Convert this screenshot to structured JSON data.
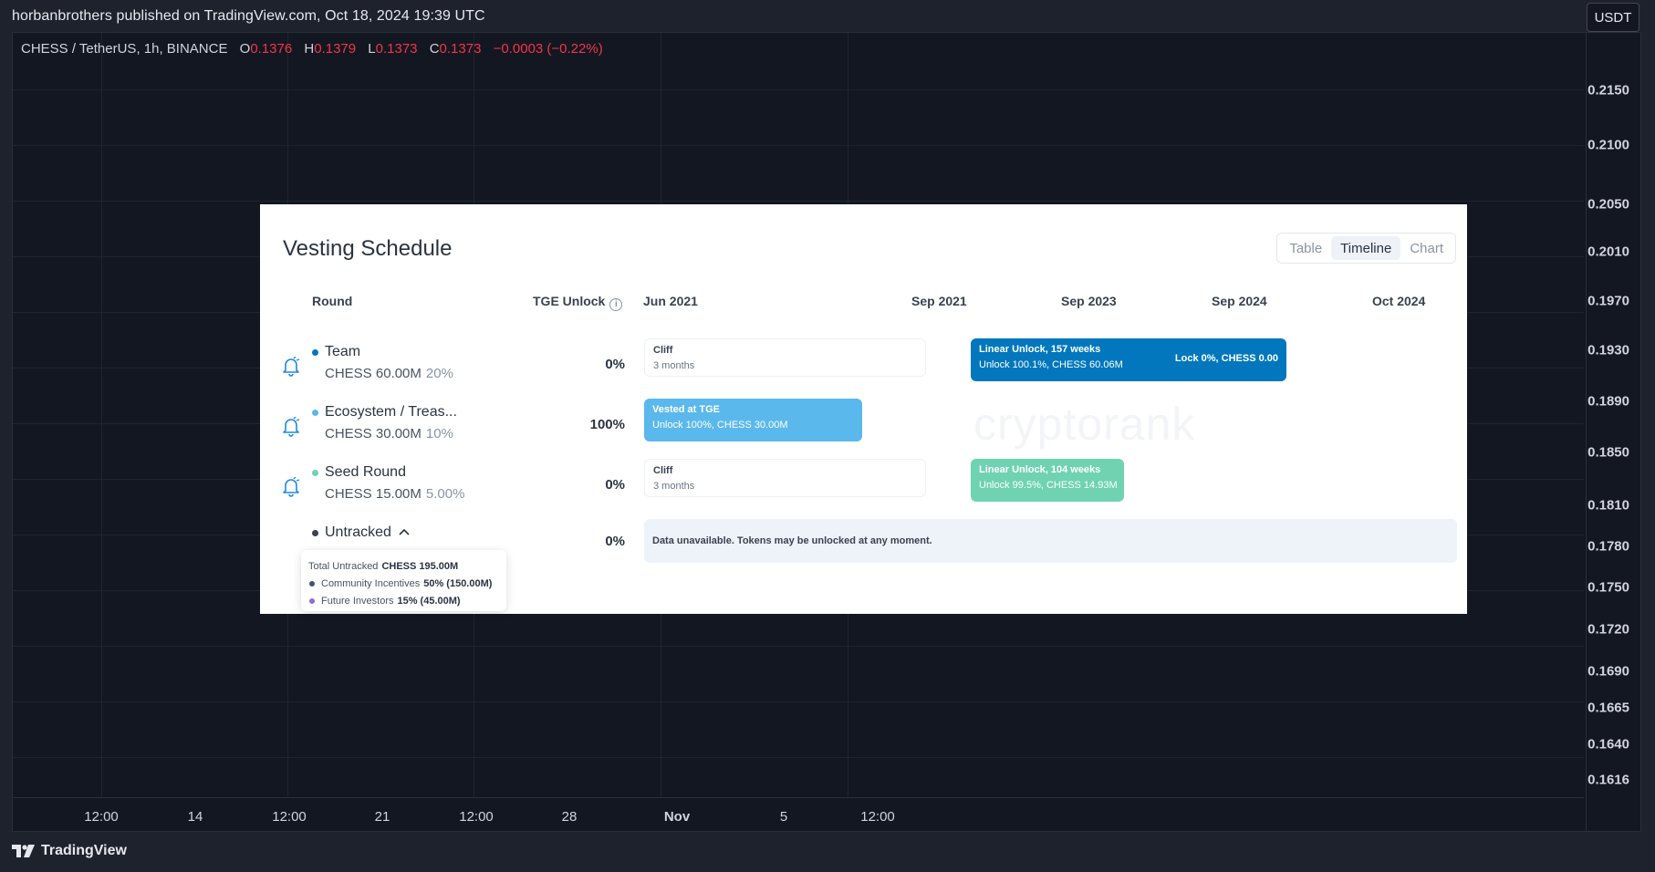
{
  "publish_bar": "horbanbrothers published on TradingView.com, Oct 18, 2024 19:39 UTC",
  "legend": {
    "symbol": "CHESS / TetherUS, 1h, BINANCE",
    "o_label": "O",
    "o": "0.1376",
    "h_label": "H",
    "h": "0.1379",
    "l_label": "L",
    "l": "0.1373",
    "c_label": "C",
    "c": "0.1373",
    "change": "−0.0003 (−0.22%)"
  },
  "currency_button": "USDT",
  "price_scale": [
    "0.2150",
    "0.2100",
    "0.2050",
    "0.2010",
    "0.1970",
    "0.1930",
    "0.1890",
    "0.1850",
    "0.1810",
    "0.1780",
    "0.1750",
    "0.1720",
    "0.1690",
    "0.1665",
    "0.1640",
    "0.1616"
  ],
  "time_axis": [
    "12:00",
    "14",
    "12:00",
    "21",
    "12:00",
    "28",
    "Nov",
    "5",
    "12:00"
  ],
  "footer_brand": "TradingView",
  "vesting": {
    "title": "Vesting Schedule",
    "views": [
      "Table",
      "Timeline",
      "Chart"
    ],
    "active_view": "Timeline",
    "columns": {
      "round": "Round",
      "tge": "TGE Unlock",
      "dates": [
        "Jun 2021",
        "Sep 2021",
        "Sep 2023",
        "Sep 2024",
        "Oct 2024"
      ]
    },
    "rounds": [
      {
        "name": "Team",
        "amount": "CHESS 60.00M",
        "pct": "20%",
        "tge": "0%",
        "color": "#0277bd"
      },
      {
        "name": "Ecosystem / Treas...",
        "amount": "CHESS 30.00M",
        "pct": "10%",
        "tge": "100%",
        "color": "#5bb8ec"
      },
      {
        "name": "Seed Round",
        "amount": "CHESS 15.00M",
        "pct": "5.00%",
        "tge": "0%",
        "color": "#6fd3b1"
      },
      {
        "name": "Untracked",
        "tge": "0%",
        "color": "#3a4252"
      }
    ],
    "bars": {
      "team_cliff": {
        "title": "Cliff",
        "sub": "3 months"
      },
      "team_linear": {
        "title": "Linear Unlock, 157 weeks",
        "sub": "Unlock 100.1%, CHESS 60.06M",
        "lock": "Lock 0%, CHESS 0.00"
      },
      "eco_vested": {
        "title": "Vested at TGE",
        "sub": "Unlock 100%, CHESS 30.00M"
      },
      "seed_cliff": {
        "title": "Cliff",
        "sub": "3 months"
      },
      "seed_linear": {
        "title": "Linear Unlock, 104 weeks",
        "sub": "Unlock 99.5%, CHESS 14.93M"
      },
      "untracked": {
        "text": "Data unavailable. Tokens may be unlocked at any moment."
      }
    },
    "untracked_popup": {
      "total_label": "Total Untracked",
      "total_value": "CHESS 195.00M",
      "items": [
        {
          "label": "Community Incentives",
          "value": "50% (150.00M)",
          "color": "#4a5262"
        },
        {
          "label": "Future Investors",
          "value": "15% (45.00M)",
          "color": "#8e6bd8"
        }
      ]
    },
    "watermark": "cryptorank"
  }
}
